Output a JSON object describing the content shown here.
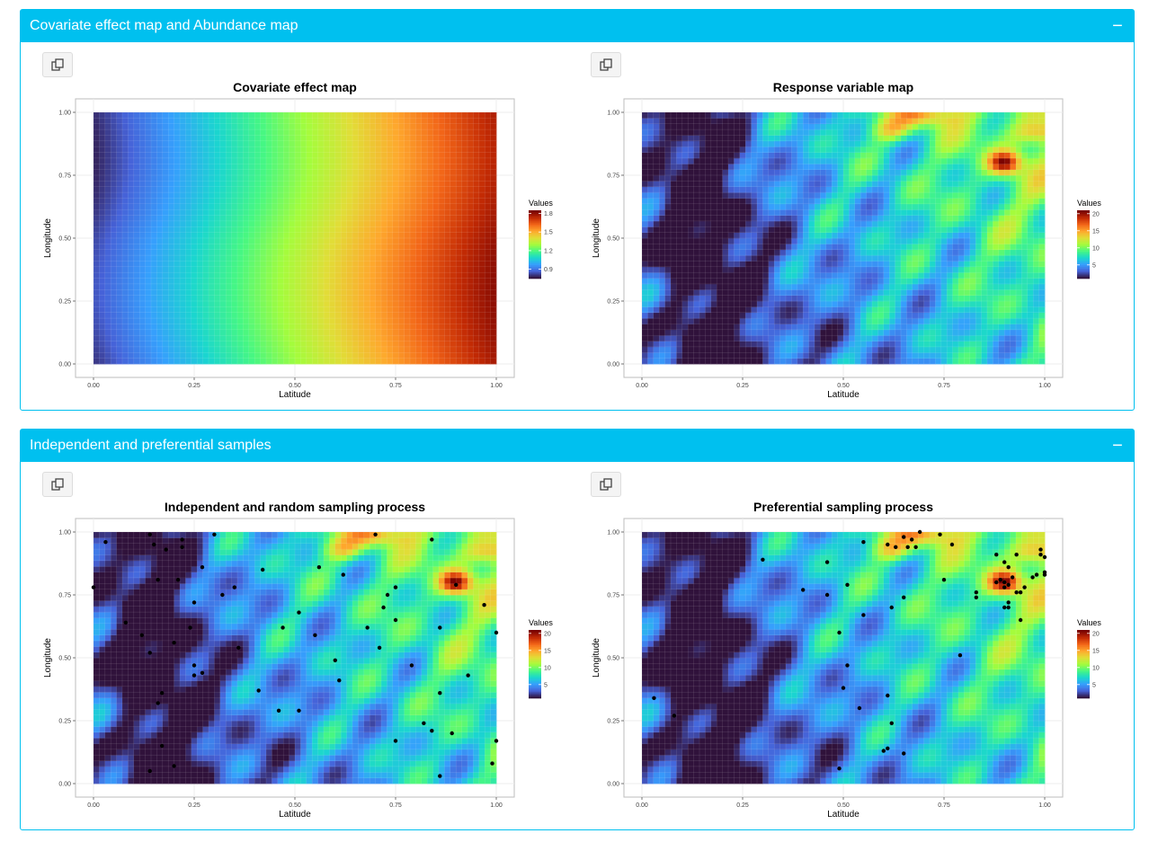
{
  "boxes": [
    {
      "title": "Covariate effect map and Abundance map",
      "collapse": "−"
    },
    {
      "title": "Independent and preferential samples",
      "collapse": "−"
    }
  ],
  "icons": {
    "copy": "copy-icon",
    "collapse": "minus-icon"
  },
  "chart_data": [
    {
      "type": "heatmap",
      "title": "Covariate effect map",
      "xlabel": "Latitude",
      "ylabel": "Longitude",
      "xticks": [
        "0.00",
        "0.25",
        "0.50",
        "0.75",
        "1.00"
      ],
      "yticks": [
        "0.00",
        "0.25",
        "0.50",
        "0.75",
        "1.00"
      ],
      "xlim": [
        0,
        1
      ],
      "ylim": [
        0,
        1
      ],
      "legend_title": "Values",
      "legend_ticks": [
        "0.9",
        "1.2",
        "1.5",
        "1.8"
      ],
      "legend_range": [
        0.75,
        1.85
      ],
      "colormap": "turbo",
      "grid": true,
      "legend_position": "right",
      "points": []
    },
    {
      "type": "heatmap",
      "title": "Response variable map",
      "xlabel": "Latitude",
      "ylabel": "Longitude",
      "xticks": [
        "0.00",
        "0.25",
        "0.50",
        "0.75",
        "1.00"
      ],
      "yticks": [
        "0.00",
        "0.25",
        "0.50",
        "0.75",
        "1.00"
      ],
      "xlim": [
        0,
        1
      ],
      "ylim": [
        0,
        1
      ],
      "legend_title": "Values",
      "legend_ticks": [
        "5",
        "10",
        "15",
        "20"
      ],
      "legend_range": [
        1,
        21
      ],
      "colormap": "turbo",
      "grid": true,
      "legend_position": "right",
      "points": []
    },
    {
      "type": "scatter",
      "title": "Independent and random sampling process",
      "xlabel": "Latitude",
      "ylabel": "Longitude",
      "xticks": [
        "0.00",
        "0.25",
        "0.50",
        "0.75",
        "1.00"
      ],
      "yticks": [
        "0.00",
        "0.25",
        "0.50",
        "0.75",
        "1.00"
      ],
      "xlim": [
        0,
        1
      ],
      "ylim": [
        0,
        1
      ],
      "legend_title": "Values",
      "legend_ticks": [
        "5",
        "10",
        "15",
        "20"
      ],
      "legend_range": [
        1,
        21
      ],
      "colormap": "turbo",
      "grid": true,
      "legend_position": "right",
      "points": [
        [
          0.0,
          0.78
        ],
        [
          0.03,
          0.96
        ],
        [
          0.14,
          0.99
        ],
        [
          0.15,
          0.95
        ],
        [
          0.18,
          0.93
        ],
        [
          0.22,
          0.97
        ],
        [
          0.22,
          0.94
        ],
        [
          0.3,
          0.99
        ],
        [
          0.16,
          0.81
        ],
        [
          0.21,
          0.81
        ],
        [
          0.27,
          0.86
        ],
        [
          0.25,
          0.72
        ],
        [
          0.32,
          0.75
        ],
        [
          0.35,
          0.78
        ],
        [
          0.08,
          0.64
        ],
        [
          0.12,
          0.59
        ],
        [
          0.2,
          0.56
        ],
        [
          0.24,
          0.62
        ],
        [
          0.14,
          0.52
        ],
        [
          0.36,
          0.54
        ],
        [
          0.25,
          0.47
        ],
        [
          0.27,
          0.44
        ],
        [
          0.25,
          0.43
        ],
        [
          0.17,
          0.36
        ],
        [
          0.16,
          0.32
        ],
        [
          0.42,
          0.85
        ],
        [
          0.56,
          0.86
        ],
        [
          0.62,
          0.83
        ],
        [
          0.7,
          0.99
        ],
        [
          0.84,
          0.97
        ],
        [
          0.9,
          0.79
        ],
        [
          0.97,
          0.71
        ],
        [
          1.0,
          0.6
        ],
        [
          0.72,
          0.7
        ],
        [
          0.73,
          0.75
        ],
        [
          0.75,
          0.78
        ],
        [
          0.75,
          0.65
        ],
        [
          0.68,
          0.62
        ],
        [
          0.71,
          0.54
        ],
        [
          0.55,
          0.59
        ],
        [
          0.51,
          0.68
        ],
        [
          0.47,
          0.62
        ],
        [
          0.86,
          0.62
        ],
        [
          0.79,
          0.47
        ],
        [
          0.6,
          0.49
        ],
        [
          0.61,
          0.41
        ],
        [
          0.41,
          0.37
        ],
        [
          0.46,
          0.29
        ],
        [
          0.51,
          0.29
        ],
        [
          0.93,
          0.43
        ],
        [
          0.86,
          0.36
        ],
        [
          0.82,
          0.24
        ],
        [
          0.84,
          0.21
        ],
        [
          0.89,
          0.2
        ],
        [
          0.75,
          0.17
        ],
        [
          0.17,
          0.15
        ],
        [
          0.2,
          0.07
        ],
        [
          0.14,
          0.05
        ],
        [
          0.86,
          0.03
        ],
        [
          0.99,
          0.08
        ],
        [
          1.0,
          0.17
        ]
      ]
    },
    {
      "type": "scatter",
      "title": "Preferential sampling process",
      "xlabel": "Latitude",
      "ylabel": "Longitude",
      "xticks": [
        "0.00",
        "0.25",
        "0.50",
        "0.75",
        "1.00"
      ],
      "yticks": [
        "0.00",
        "0.25",
        "0.50",
        "0.75",
        "1.00"
      ],
      "xlim": [
        0,
        1
      ],
      "ylim": [
        0,
        1
      ],
      "legend_title": "Values",
      "legend_ticks": [
        "5",
        "10",
        "15",
        "20"
      ],
      "legend_range": [
        1,
        21
      ],
      "colormap": "turbo",
      "grid": true,
      "legend_position": "right",
      "points": [
        [
          0.3,
          0.89
        ],
        [
          0.46,
          0.88
        ],
        [
          0.4,
          0.77
        ],
        [
          0.46,
          0.75
        ],
        [
          0.51,
          0.79
        ],
        [
          0.55,
          0.96
        ],
        [
          0.61,
          0.95
        ],
        [
          0.63,
          0.94
        ],
        [
          0.65,
          0.98
        ],
        [
          0.67,
          0.97
        ],
        [
          0.66,
          0.94
        ],
        [
          0.68,
          0.94
        ],
        [
          0.69,
          1.0
        ],
        [
          0.74,
          0.99
        ],
        [
          0.77,
          0.95
        ],
        [
          0.75,
          0.81
        ],
        [
          0.65,
          0.74
        ],
        [
          0.62,
          0.7
        ],
        [
          0.55,
          0.67
        ],
        [
          0.49,
          0.6
        ],
        [
          0.51,
          0.47
        ],
        [
          0.5,
          0.38
        ],
        [
          0.61,
          0.35
        ],
        [
          0.54,
          0.3
        ],
        [
          0.62,
          0.24
        ],
        [
          0.6,
          0.13
        ],
        [
          0.61,
          0.14
        ],
        [
          0.65,
          0.12
        ],
        [
          0.49,
          0.06
        ],
        [
          0.79,
          0.51
        ],
        [
          0.83,
          0.76
        ],
        [
          0.83,
          0.74
        ],
        [
          0.88,
          0.91
        ],
        [
          0.9,
          0.88
        ],
        [
          0.91,
          0.86
        ],
        [
          0.89,
          0.81
        ],
        [
          0.9,
          0.8
        ],
        [
          0.91,
          0.79
        ],
        [
          0.92,
          0.82
        ],
        [
          0.88,
          0.8
        ],
        [
          0.9,
          0.78
        ],
        [
          0.93,
          0.76
        ],
        [
          0.91,
          0.72
        ],
        [
          0.9,
          0.7
        ],
        [
          0.91,
          0.7
        ],
        [
          0.94,
          0.76
        ],
        [
          0.95,
          0.78
        ],
        [
          0.97,
          0.82
        ],
        [
          0.98,
          0.83
        ],
        [
          0.99,
          0.93
        ],
        [
          1.0,
          0.9
        ],
        [
          0.99,
          0.91
        ],
        [
          1.0,
          0.84
        ],
        [
          1.0,
          0.83
        ],
        [
          0.93,
          0.91
        ],
        [
          0.94,
          0.65
        ],
        [
          0.03,
          0.34
        ],
        [
          0.08,
          0.27
        ]
      ]
    }
  ]
}
